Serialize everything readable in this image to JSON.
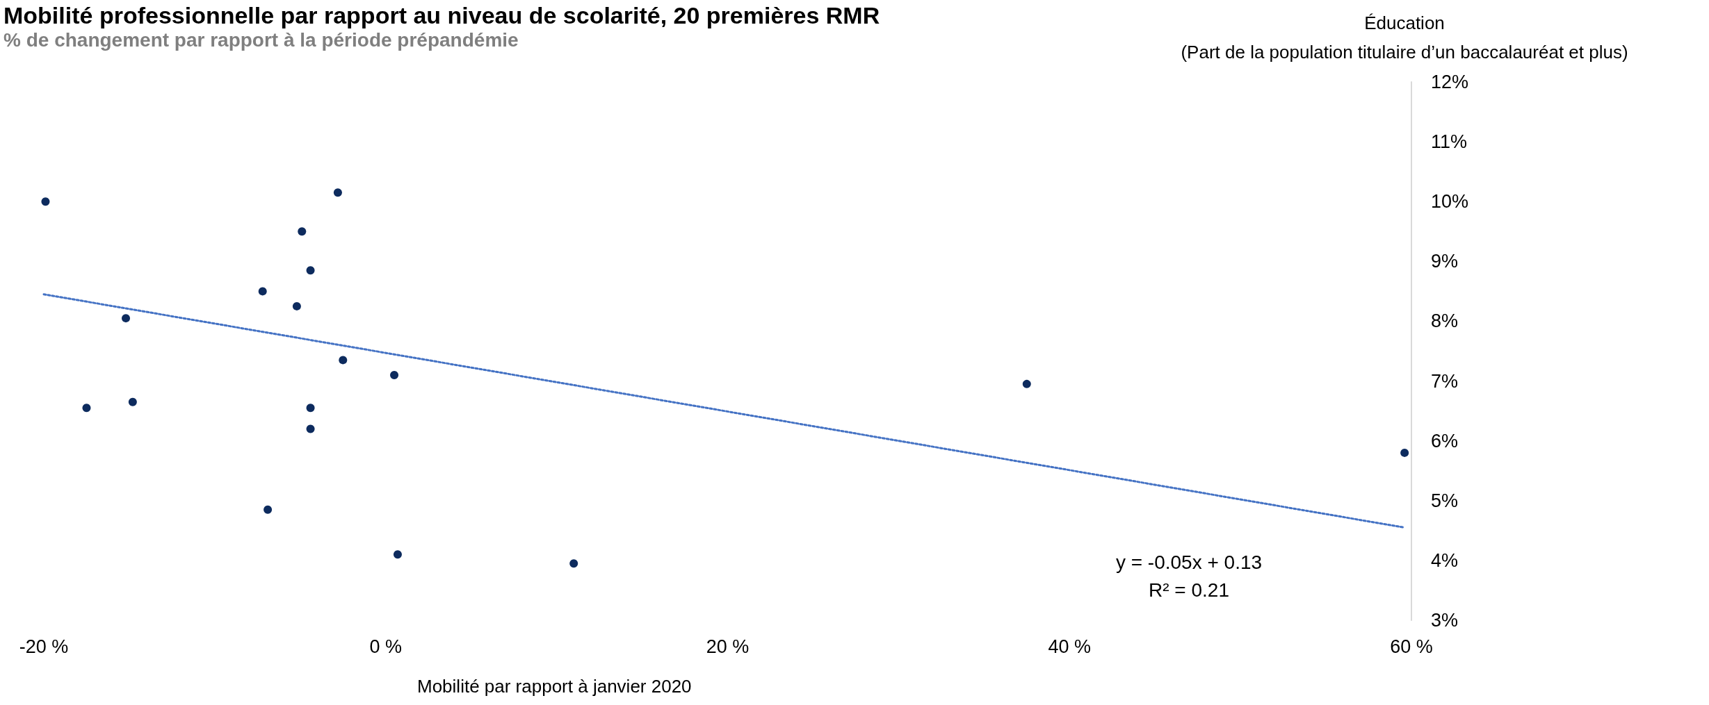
{
  "chart_data": {
    "type": "scatter",
    "title": "Mobilité professionnelle par rapport au niveau de scolarité, 20 premières RMR",
    "subtitle": "% de changement par rapport à la période prépandémie",
    "xlabel": "Mobilité par rapport à janvier 2020",
    "ylabel": "Éducation\n(Part de la population titulaire d’un baccalauréat et plus)",
    "series": [
      {
        "color": "#0d2b5e",
        "marker": "circle",
        "x": [
          -19.9,
          -2.8,
          -4.9,
          -4.4,
          -7.2,
          -5.2,
          -15.2,
          -2.5,
          0.5,
          37.5,
          -17.5,
          -14.8,
          -4.4,
          -4.4,
          -6.9,
          0.7,
          11.0,
          59.6
        ],
        "values": [
          10.0,
          10.15,
          9.5,
          8.85,
          8.5,
          8.25,
          8.05,
          7.35,
          7.1,
          6.95,
          6.55,
          6.65,
          6.55,
          6.2,
          4.85,
          4.1,
          3.95,
          5.8
        ]
      },
      {
        "type": "line",
        "color": "#4472c4",
        "marker": "none",
        "line_style": "dotted",
        "x": [
          -20,
          59.6
        ],
        "values": [
          8.45,
          4.55
        ]
      }
    ],
    "annotations": [
      "y = -0.05x + 0.13",
      "R² = 0.21"
    ],
    "xlim": [
      -20,
      60
    ],
    "xticks": [
      {
        "value": -20,
        "label": "-20 %"
      },
      {
        "value": 0,
        "label": "0 %"
      },
      {
        "value": 20,
        "label": "20 %"
      },
      {
        "value": 40,
        "label": "40 %"
      },
      {
        "value": 60,
        "label": "60 %"
      }
    ],
    "ylim": [
      3,
      12
    ],
    "yticks": [
      {
        "value": 3,
        "label": "3%"
      },
      {
        "value": 4,
        "label": "4%"
      },
      {
        "value": 5,
        "label": "5%"
      },
      {
        "value": 6,
        "label": "6%"
      },
      {
        "value": 7,
        "label": "7%"
      },
      {
        "value": 8,
        "label": "8%"
      },
      {
        "value": 9,
        "label": "9%"
      },
      {
        "value": 10,
        "label": "10%"
      },
      {
        "value": 11,
        "label": "11%"
      },
      {
        "value": 12,
        "label": "12%"
      }
    ],
    "grid": false
  }
}
